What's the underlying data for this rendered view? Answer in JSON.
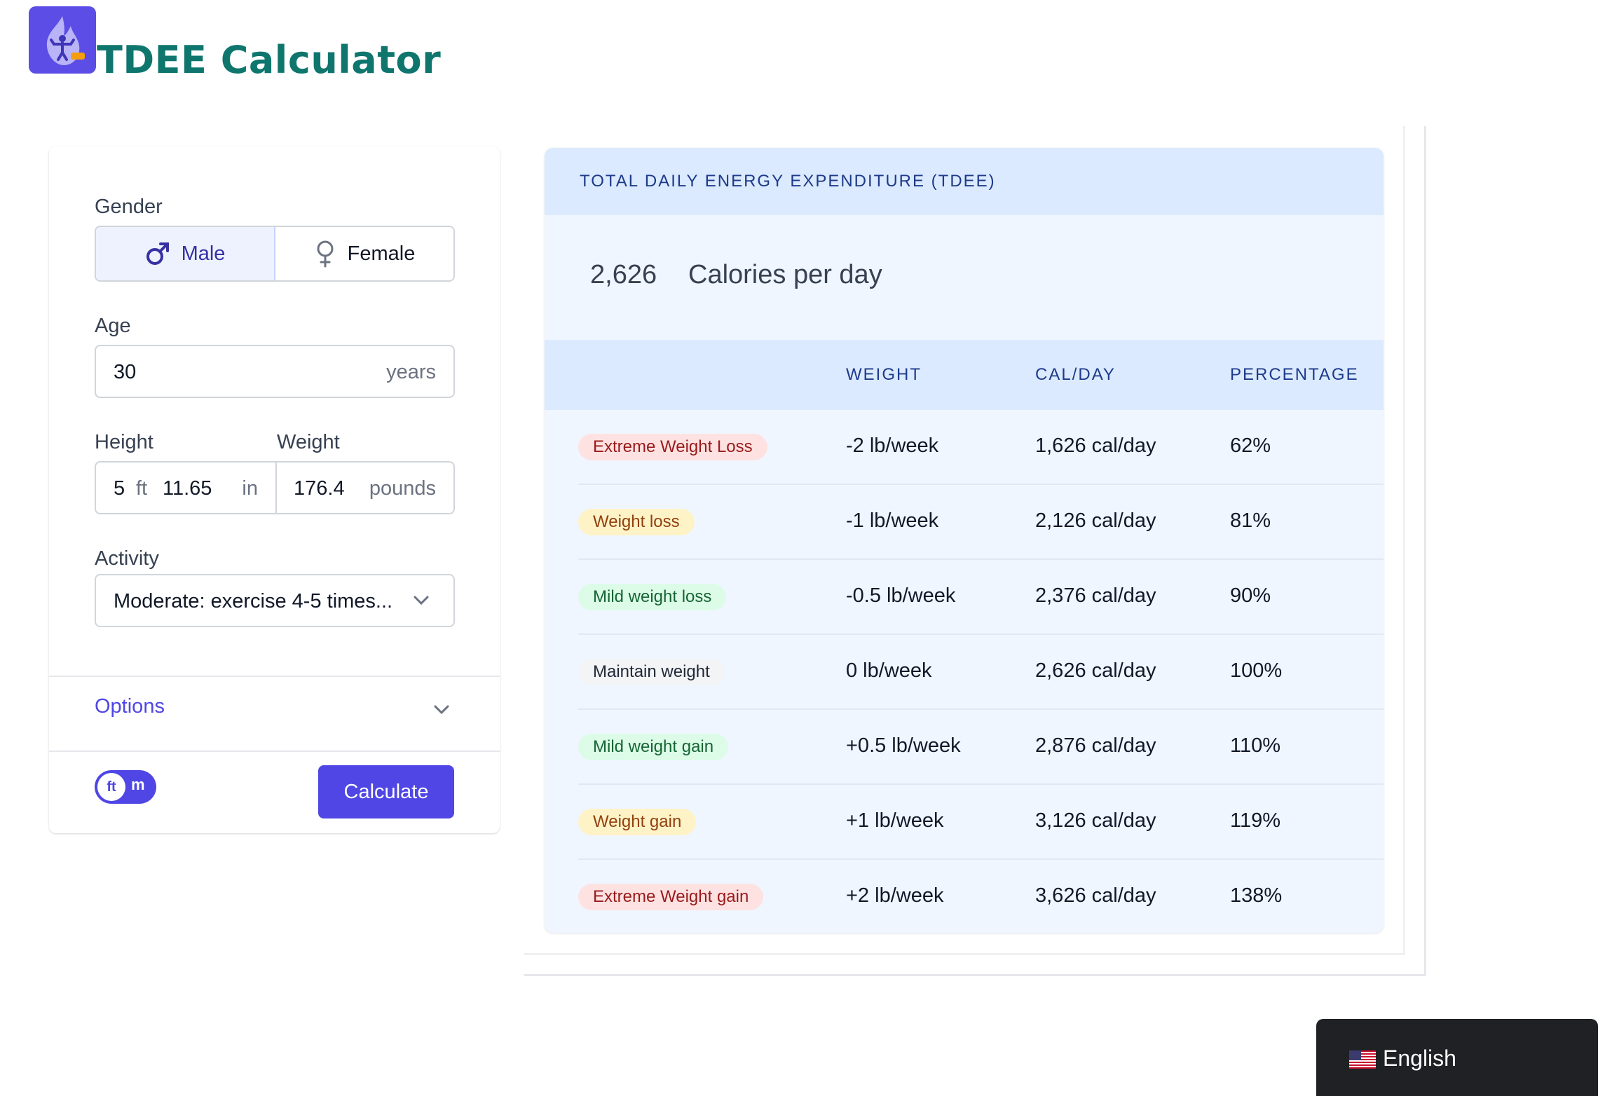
{
  "header": {
    "title": "TDEE Calculator",
    "logo_icon": "flame-fitness-logo"
  },
  "form": {
    "gender_label": "Gender",
    "gender_options": [
      {
        "label": "Male",
        "icon": "male-symbol-icon",
        "selected": true
      },
      {
        "label": "Female",
        "icon": "female-symbol-icon",
        "selected": false
      }
    ],
    "age_label": "Age",
    "age_value": "30",
    "age_unit": "years",
    "height_label": "Height",
    "height_ft": "5",
    "height_ft_unit": "ft",
    "height_in": "11.65",
    "height_in_unit": "in",
    "weight_label": "Weight",
    "weight_value": "176.4",
    "weight_unit": "pounds",
    "activity_label": "Activity",
    "activity_value": "Moderate: exercise 4-5 times...",
    "options_label": "Options",
    "unit_toggle_left": "ft",
    "unit_toggle_right": "m",
    "calculate_label": "Calculate"
  },
  "results": {
    "header": "TOTAL DAILY ENERGY EXPENDITURE (TDEE)",
    "tdee_value": "2,626",
    "tdee_unit": "Calories per day",
    "columns": [
      "WEIGHT",
      "CAL/DAY",
      "PERCENTAGE"
    ],
    "rows": [
      {
        "goal": "Extreme Weight Loss",
        "weight": "-2 lb/week",
        "cal": "1,626 cal/day",
        "pct": "62%",
        "tone": "red"
      },
      {
        "goal": "Weight loss",
        "weight": "-1 lb/week",
        "cal": "2,126 cal/day",
        "pct": "81%",
        "tone": "yellow"
      },
      {
        "goal": "Mild weight loss",
        "weight": "-0.5 lb/week",
        "cal": "2,376 cal/day",
        "pct": "90%",
        "tone": "green"
      },
      {
        "goal": "Maintain weight",
        "weight": "0 lb/week",
        "cal": "2,626 cal/day",
        "pct": "100%",
        "tone": "gray"
      },
      {
        "goal": "Mild weight gain",
        "weight": "+0.5 lb/week",
        "cal": "2,876 cal/day",
        "pct": "110%",
        "tone": "green"
      },
      {
        "goal": "Weight gain",
        "weight": "+1 lb/week",
        "cal": "3,126 cal/day",
        "pct": "119%",
        "tone": "yellow"
      },
      {
        "goal": "Extreme Weight gain",
        "weight": "+2 lb/week",
        "cal": "3,626 cal/day",
        "pct": "138%",
        "tone": "red"
      }
    ]
  },
  "language": {
    "label": "English",
    "flag_icon": "us-flag-icon"
  },
  "colors": {
    "accent": "#4f46e5",
    "brand_title": "#0f766e",
    "red_bg": "#fee2e2",
    "red_fg": "#991b1b",
    "yellow_bg": "#fef3c7",
    "yellow_fg": "#92400e",
    "green_bg": "#dcfce7",
    "green_fg": "#166534",
    "gray_bg": "#f3f4f6",
    "gray_fg": "#1f2937"
  }
}
